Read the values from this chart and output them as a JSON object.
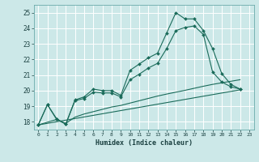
{
  "xlabel": "Humidex (Indice chaleur)",
  "background_color": "#cce8e8",
  "grid_color": "#ffffff",
  "line_color": "#1a6b5a",
  "xlim": [
    -0.5,
    23.5
  ],
  "ylim": [
    17.5,
    25.5
  ],
  "yticks": [
    18,
    19,
    20,
    21,
    22,
    23,
    24,
    25
  ],
  "xticks": [
    0,
    1,
    2,
    3,
    4,
    5,
    6,
    7,
    8,
    9,
    10,
    11,
    12,
    13,
    14,
    15,
    16,
    17,
    18,
    19,
    20,
    21,
    22,
    23
  ],
  "lines": [
    {
      "x": [
        0,
        1,
        2,
        3,
        4,
        5,
        6,
        7,
        8,
        9,
        10,
        11,
        12,
        13,
        14,
        15,
        16,
        17,
        18,
        19,
        20,
        21,
        22
      ],
      "y": [
        17.8,
        19.1,
        18.2,
        17.85,
        19.4,
        19.6,
        20.1,
        20.0,
        20.0,
        19.7,
        21.3,
        21.7,
        22.1,
        22.4,
        23.7,
        25.0,
        24.6,
        24.6,
        23.85,
        22.7,
        21.1,
        20.4,
        20.1
      ],
      "marker": true
    },
    {
      "x": [
        0,
        1,
        2,
        3,
        4,
        5,
        6,
        7,
        8,
        9,
        10,
        11,
        12,
        13,
        14,
        15,
        16,
        17,
        18,
        19,
        20,
        21,
        22
      ],
      "y": [
        17.8,
        19.1,
        18.15,
        17.85,
        19.35,
        19.5,
        19.9,
        19.85,
        19.85,
        19.6,
        20.7,
        21.05,
        21.45,
        21.75,
        22.7,
        23.85,
        24.05,
        24.15,
        23.6,
        21.2,
        20.55,
        20.25,
        20.1
      ],
      "marker": true
    },
    {
      "x": [
        0,
        2,
        3,
        4,
        5,
        6,
        7,
        8,
        9,
        10,
        11,
        12,
        13,
        14,
        15,
        16,
        17,
        18,
        19,
        20,
        21,
        22
      ],
      "y": [
        17.8,
        18.15,
        17.9,
        18.3,
        18.5,
        18.65,
        18.8,
        18.95,
        19.05,
        19.2,
        19.35,
        19.5,
        19.65,
        19.78,
        19.9,
        20.02,
        20.15,
        20.28,
        20.4,
        20.5,
        20.6,
        20.7
      ],
      "marker": false
    },
    {
      "x": [
        0,
        22
      ],
      "y": [
        17.8,
        20.05
      ],
      "marker": false
    }
  ]
}
